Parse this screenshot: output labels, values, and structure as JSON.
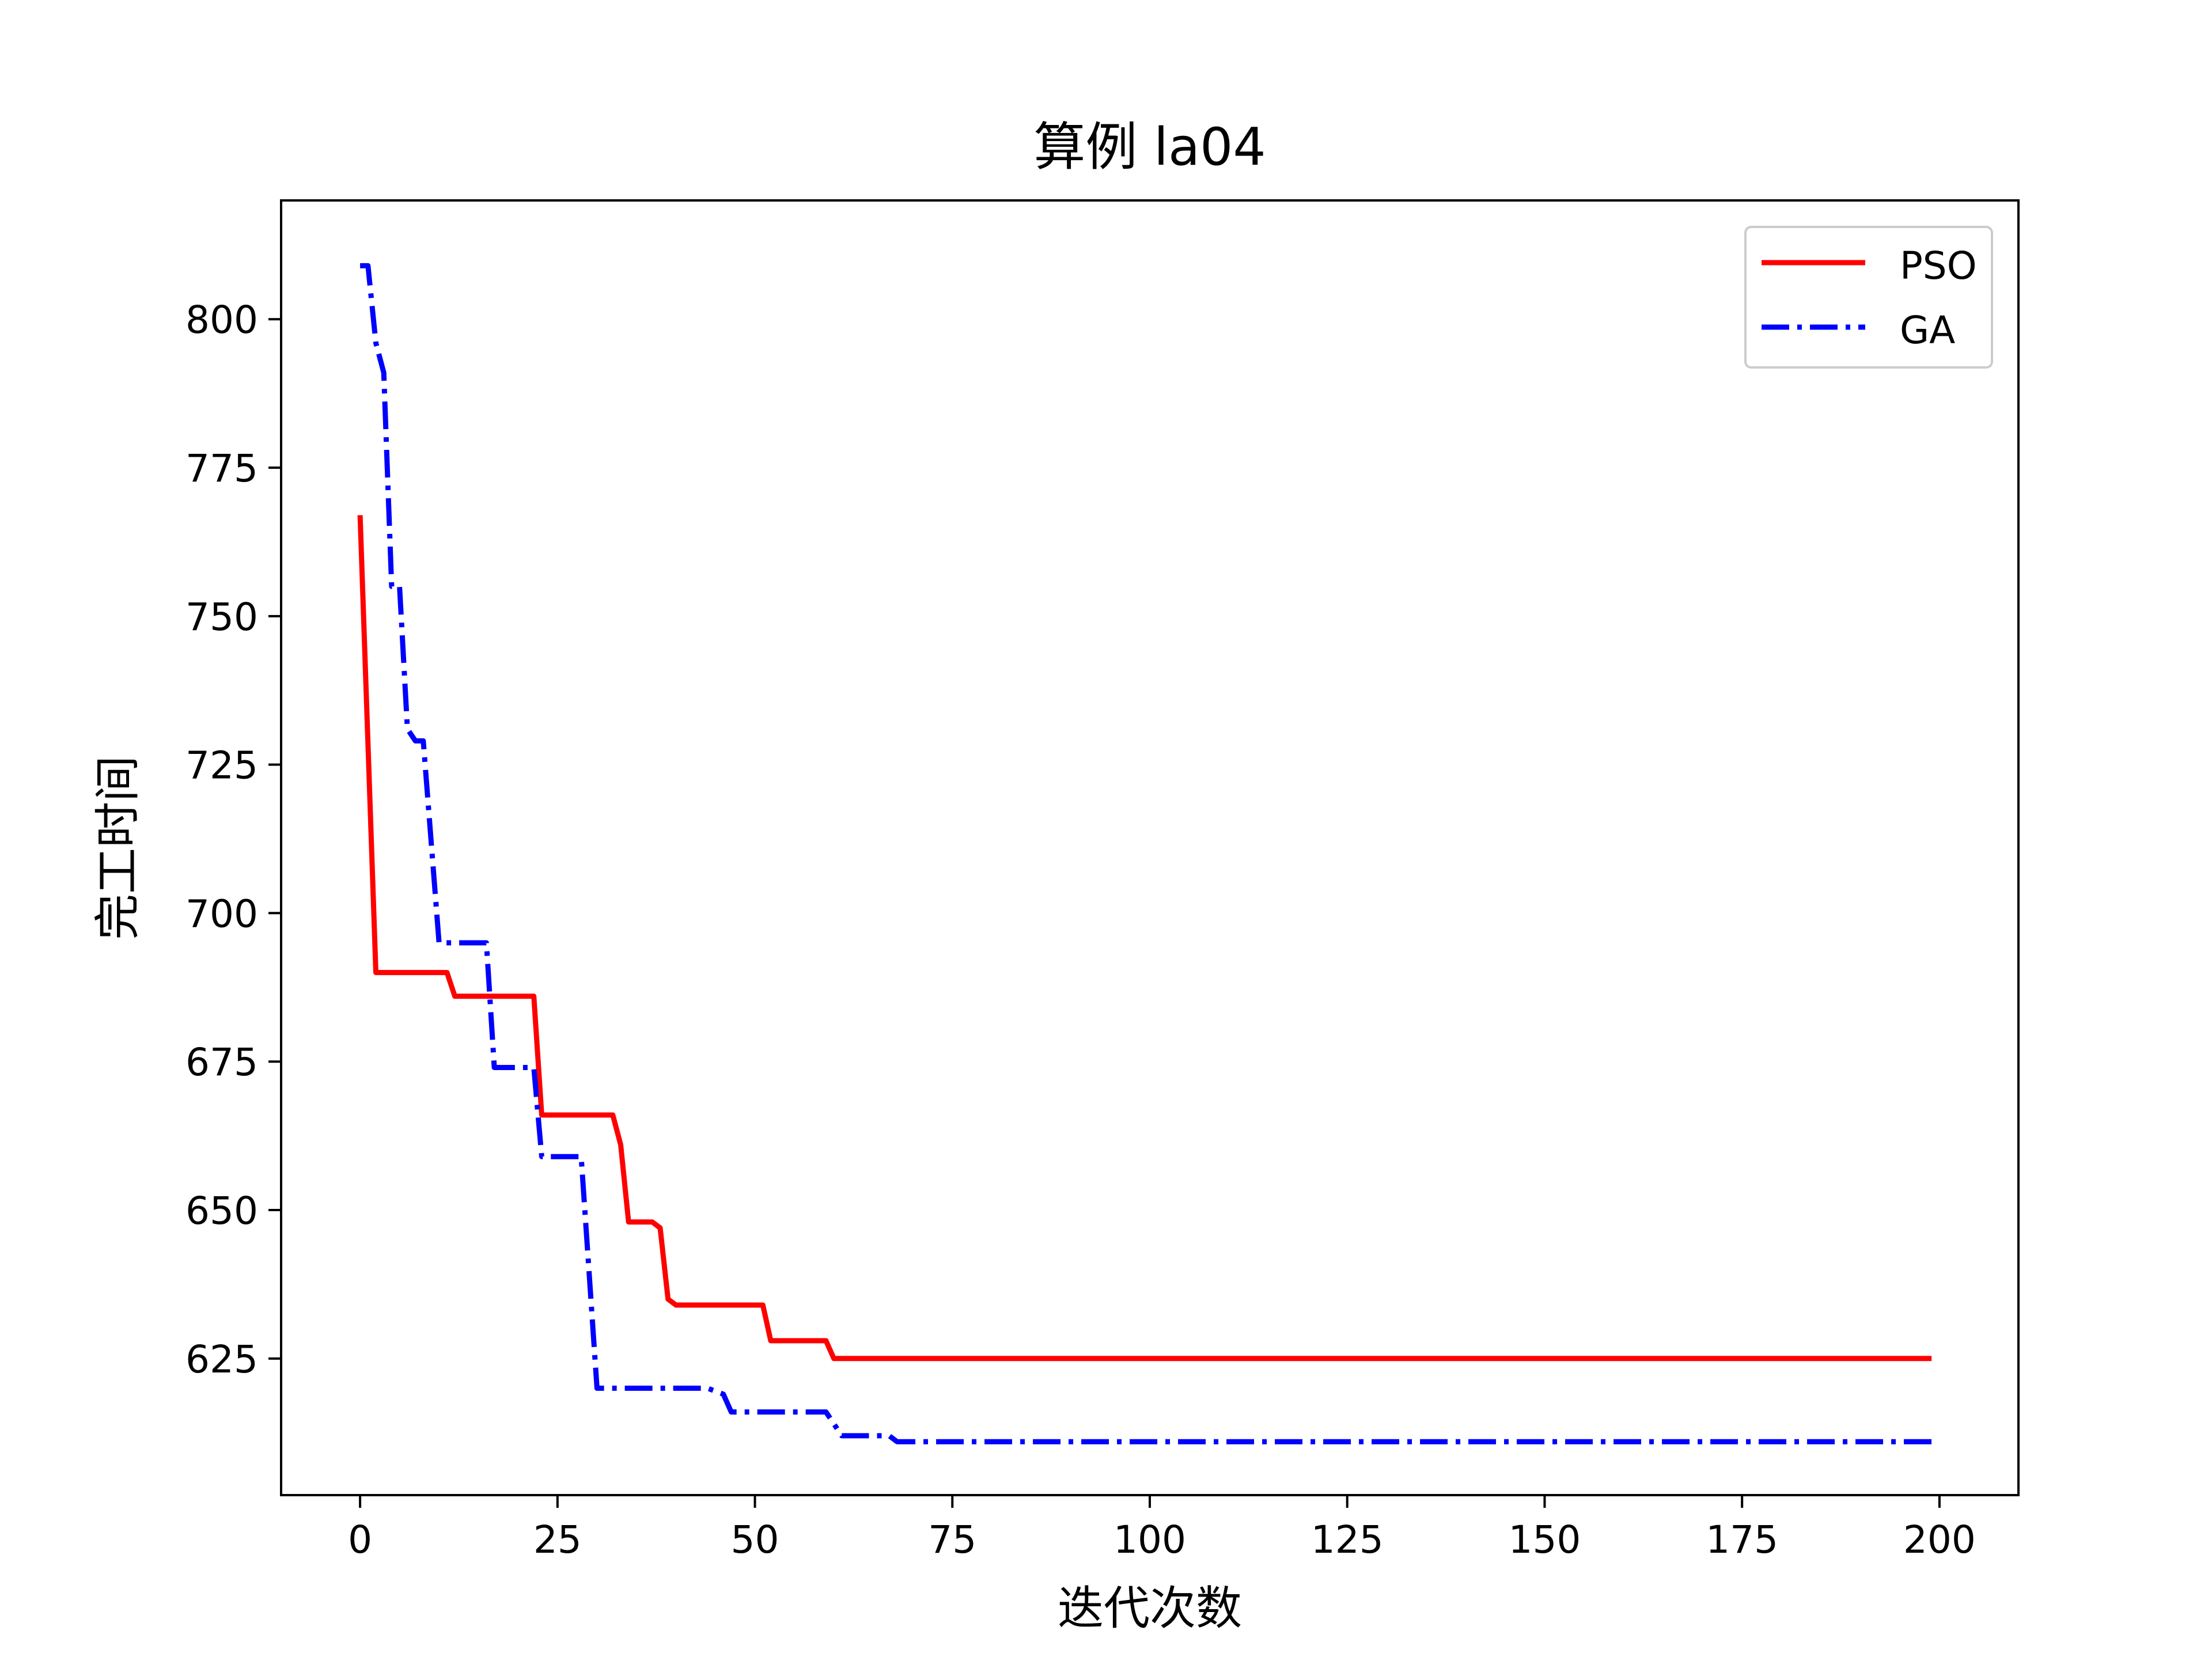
{
  "chart_data": {
    "type": "line",
    "title": "算例 la04",
    "xlabel": "迭代次数",
    "ylabel": "完工时间",
    "xlim": [
      -10,
      210
    ],
    "ylim": [
      602,
      820
    ],
    "xticks": [
      0,
      25,
      50,
      75,
      100,
      125,
      150,
      175,
      200
    ],
    "yticks": [
      625,
      650,
      675,
      700,
      725,
      750,
      775,
      800
    ],
    "grid": false,
    "legend_position": "top-right",
    "series": [
      {
        "name": "PSO",
        "color": "#ff0000",
        "line_style": "solid",
        "x": [
          0,
          2,
          11,
          12,
          22,
          23,
          32,
          33,
          34,
          37,
          38,
          39,
          40,
          51,
          52,
          59,
          60,
          199
        ],
        "y": [
          767,
          690,
          690,
          686,
          686,
          666,
          666,
          661,
          648,
          648,
          647,
          635,
          634,
          634,
          628,
          628,
          625,
          625
        ]
      },
      {
        "name": "GA",
        "color": "#0000ff",
        "line_style": "dashdot",
        "x": [
          0,
          1,
          2,
          3,
          4,
          5,
          6,
          7,
          8,
          10,
          16,
          17,
          22,
          23,
          28,
          30,
          44,
          46,
          47,
          59,
          61,
          67,
          68,
          199
        ],
        "y": [
          809,
          809,
          796,
          791,
          755,
          755,
          731,
          729,
          729,
          695,
          695,
          674,
          674,
          659,
          659,
          620,
          620,
          619,
          616,
          616,
          612,
          612,
          611,
          611
        ]
      }
    ]
  }
}
